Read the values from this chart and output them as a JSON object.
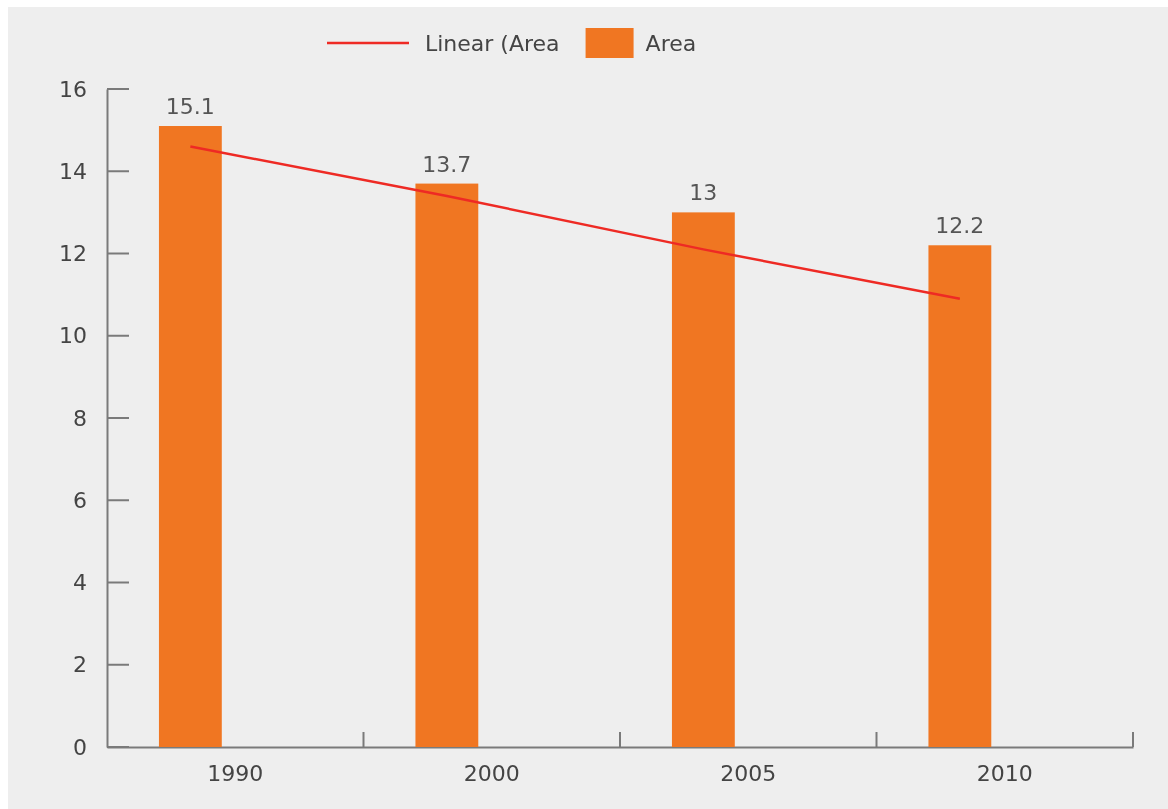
{
  "chart_data": {
    "type": "bar",
    "categories": [
      "1990",
      "2000",
      "2005",
      "2010"
    ],
    "series": [
      {
        "name": "Linear (Area",
        "type": "line",
        "color": "#ee2a24",
        "values": [
          14.6,
          13.4,
          12.1,
          10.9
        ]
      },
      {
        "name": "Area",
        "color": "#f07622",
        "values": [
          15.1,
          13.7,
          13,
          12.2
        ],
        "value_labels": [
          "15.1",
          "13.7",
          "13",
          "12.2"
        ]
      }
    ],
    "ylim": [
      0,
      16
    ],
    "yticks": [
      0,
      2,
      4,
      6,
      8,
      10,
      12,
      14,
      16
    ],
    "grid": false,
    "legend": "top"
  }
}
